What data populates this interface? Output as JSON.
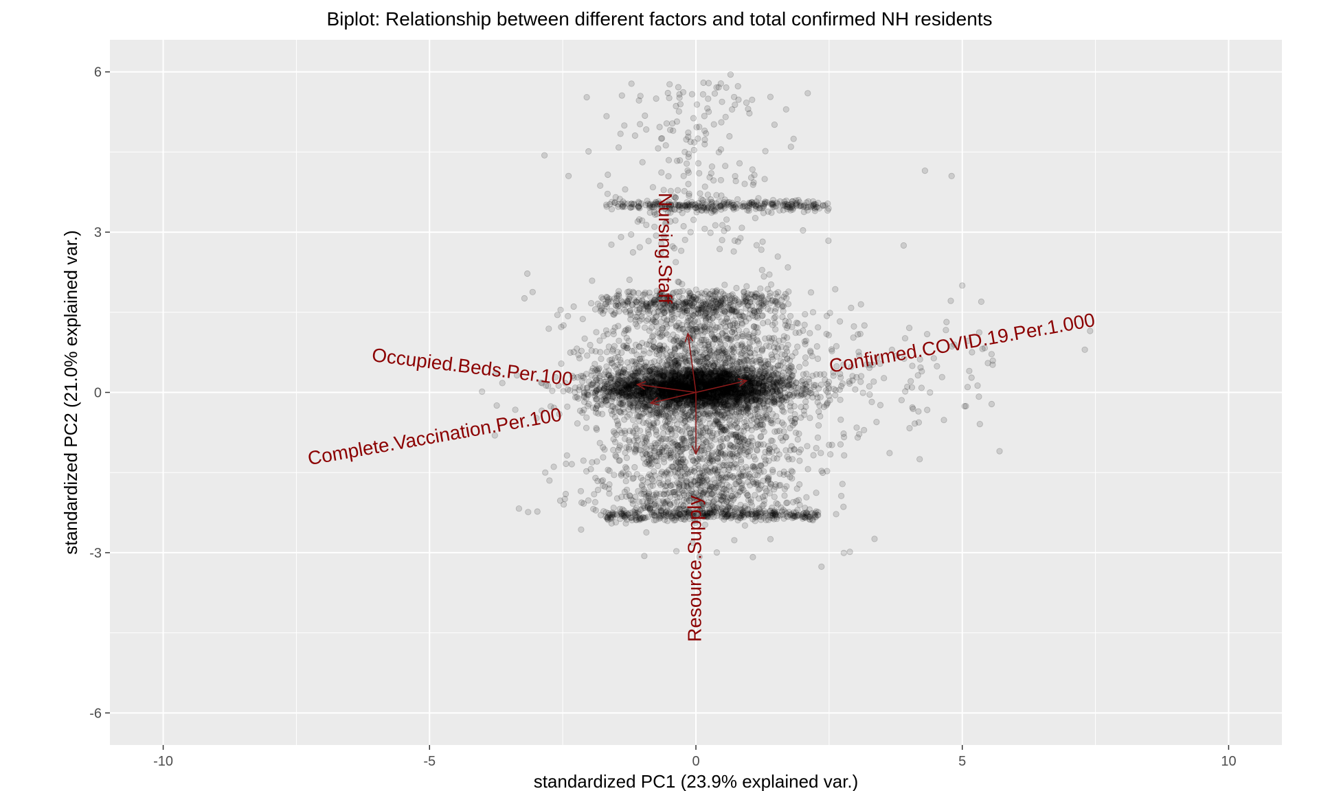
{
  "chart_data": {
    "type": "scatter",
    "title": "Biplot: Relationship between different factors and total confirmed NH residents",
    "xlabel": "standardized PC1 (23.9% explained var.)",
    "ylabel": "standardized PC2 (21.0% explained var.)",
    "xlim": [
      -11,
      11
    ],
    "ylim": [
      -6.6,
      6.6
    ],
    "x_ticks": [
      -10,
      -5,
      0,
      5,
      10
    ],
    "y_ticks": [
      -6,
      -3,
      0,
      3,
      6
    ],
    "x_tick_labels": [
      "-10",
      "-5",
      "0",
      "5",
      "10"
    ],
    "y_tick_labels": [
      "-6",
      "-3",
      "0",
      "3",
      "6"
    ],
    "grid": true,
    "panel_background": "#ebebeb",
    "grid_color": "#ffffff",
    "point_color": "#000000",
    "arrow_color": "#8b1a1a",
    "label_color": "#8b0000",
    "loadings": [
      {
        "label": "Nursing.Staff",
        "x": -0.15,
        "y": 1.1,
        "label_angle": 90
      },
      {
        "label": "Resource.Supply",
        "x": 0.0,
        "y": -1.15,
        "label_angle": -90
      },
      {
        "label": "Confirmed.COVID.19.Per.1.000",
        "x": 0.95,
        "y": 0.22,
        "label_angle": -10
      },
      {
        "label": "Occupied.Beds.Per.100",
        "x": -1.1,
        "y": 0.15,
        "label_angle": 7
      },
      {
        "label": "Complete.Vaccination.Per.100",
        "x": -0.85,
        "y": -0.2,
        "label_angle": -10
      }
    ],
    "label_positions": [
      {
        "label": "Nursing.Staff",
        "x": -0.6,
        "y": 2.7
      },
      {
        "label": "Resource.Supply",
        "x": 0.0,
        "y": -3.3
      },
      {
        "label": "Confirmed.COVID.19.Per.1.000",
        "x": 5.0,
        "y": 0.9
      },
      {
        "label": "Occupied.Beds.Per.100",
        "x": -4.2,
        "y": 0.45
      },
      {
        "label": "Complete.Vaccination.Per.100",
        "x": -4.9,
        "y": -0.85
      }
    ]
  }
}
